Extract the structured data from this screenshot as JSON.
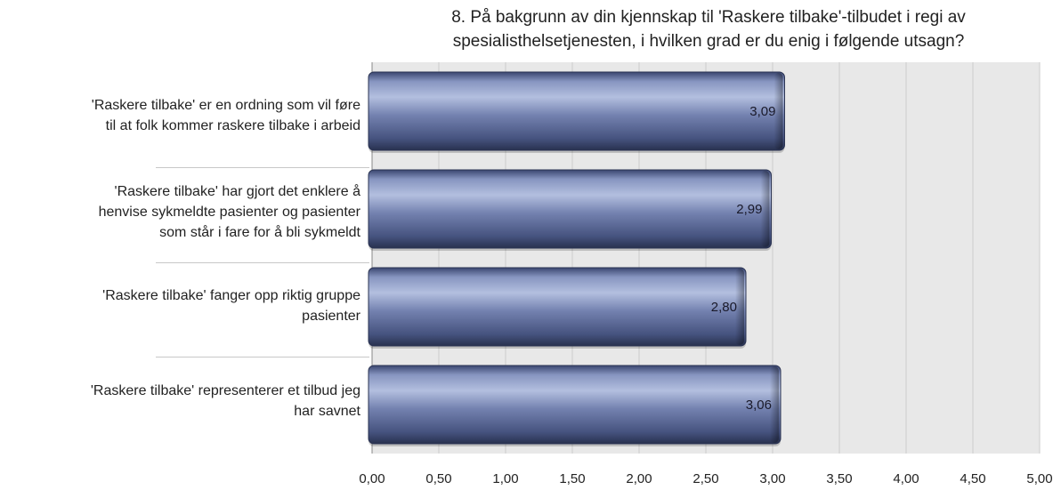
{
  "chart_data": {
    "type": "bar",
    "orientation": "horizontal",
    "title": "8. På bakgrunn av din kjennskap til 'Raskere tilbake'-tilbudet i regi av spesialisthelsetjenesten, i hvilken grad er du enig i følgende utsagn?",
    "title_lines": [
      "8. På bakgrunn av din kjennskap til 'Raskere tilbake'-tilbudet i regi av",
      "spesialisthelsetjenesten, i hvilken grad er du enig i følgende utsagn?"
    ],
    "categories": [
      {
        "lines": [
          "'Raskere tilbake' er en ordning som vil føre",
          "til at folk kommer raskere tilbake i arbeid"
        ]
      },
      {
        "lines": [
          "'Raskere tilbake' har gjort det enklere å",
          "henvise sykmeldte pasienter og pasienter",
          "som står i fare for å bli sykmeldt"
        ]
      },
      {
        "lines": [
          "'Raskere tilbake' fanger opp riktig gruppe",
          "pasienter"
        ]
      },
      {
        "lines": [
          "'Raskere tilbake' representerer et tilbud jeg",
          "har savnet"
        ]
      }
    ],
    "values": [
      3.09,
      2.99,
      2.8,
      3.06
    ],
    "value_labels": [
      "3,09",
      "2,99",
      "2,80",
      "3,06"
    ],
    "xlim": [
      0,
      5
    ],
    "xticks": [
      "0,00",
      "0,50",
      "1,00",
      "1,50",
      "2,00",
      "2,50",
      "3,00",
      "3,50",
      "4,00",
      "4,50",
      "5,00"
    ],
    "xlabel": "",
    "ylabel": "",
    "grid": true,
    "colors": {
      "bar_light": "#a9b5d6",
      "bar_mid": "#5f6f9d",
      "bar_dark": "#2f3a5e",
      "plot_bg": "#e8e8e8",
      "grid": "#cccccc"
    }
  }
}
